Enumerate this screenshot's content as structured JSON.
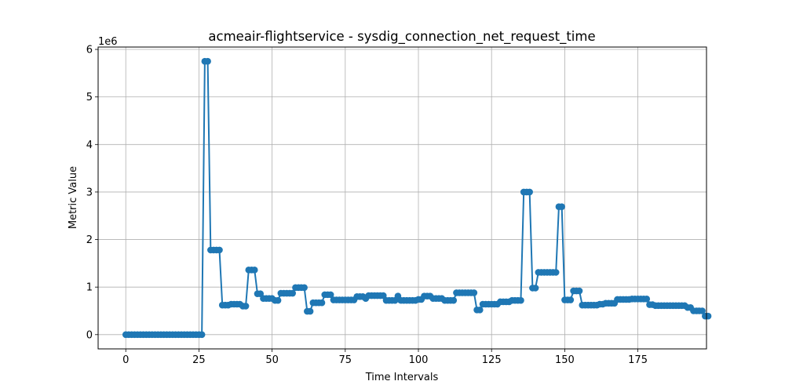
{
  "chart_data": {
    "type": "line",
    "title": "acmeair-flightservice - sysdig_connection_net_request_time",
    "xlabel": "Time Intervals",
    "ylabel": "Metric Value",
    "y_offset_label": "1e6",
    "xlim": [
      -9.45,
      198.45
    ],
    "ylim": [
      -300000,
      6050000
    ],
    "grid": true,
    "marker": "circle",
    "color": "#1f77b4",
    "x_ticks": [
      {
        "value": 0,
        "label": "0"
      },
      {
        "value": 25,
        "label": "25"
      },
      {
        "value": 50,
        "label": "50"
      },
      {
        "value": 75,
        "label": "75"
      },
      {
        "value": 100,
        "label": "100"
      },
      {
        "value": 125,
        "label": "125"
      },
      {
        "value": 150,
        "label": "150"
      },
      {
        "value": 175,
        "label": "175"
      }
    ],
    "y_ticks": [
      {
        "value": 0,
        "label": "0"
      },
      {
        "value": 1000000,
        "label": "1"
      },
      {
        "value": 2000000,
        "label": "2"
      },
      {
        "value": 3000000,
        "label": "3"
      },
      {
        "value": 4000000,
        "label": "4"
      },
      {
        "value": 5000000,
        "label": "5"
      },
      {
        "value": 6000000,
        "label": "6"
      }
    ],
    "series": [
      {
        "values": [
          0,
          0,
          0,
          0,
          0,
          0,
          0,
          0,
          0,
          0,
          0,
          0,
          0,
          0,
          0,
          0,
          0,
          0,
          0,
          0,
          0,
          0,
          0,
          0,
          0,
          0,
          0,
          5750000,
          5750000,
          1780000,
          1780000,
          1780000,
          1780000,
          620000,
          620000,
          620000,
          640000,
          640000,
          640000,
          640000,
          600000,
          600000,
          1360000,
          1360000,
          1360000,
          860000,
          860000,
          760000,
          760000,
          760000,
          760000,
          720000,
          720000,
          870000,
          870000,
          870000,
          870000,
          870000,
          990000,
          990000,
          990000,
          990000,
          490000,
          490000,
          670000,
          670000,
          670000,
          670000,
          840000,
          840000,
          840000,
          730000,
          730000,
          730000,
          730000,
          730000,
          730000,
          730000,
          730000,
          800000,
          800000,
          800000,
          760000,
          820000,
          820000,
          820000,
          820000,
          820000,
          820000,
          720000,
          720000,
          720000,
          720000,
          810000,
          720000,
          720000,
          720000,
          720000,
          720000,
          720000,
          740000,
          740000,
          810000,
          810000,
          810000,
          760000,
          760000,
          760000,
          760000,
          720000,
          720000,
          720000,
          720000,
          880000,
          880000,
          880000,
          880000,
          880000,
          880000,
          880000,
          520000,
          520000,
          640000,
          640000,
          640000,
          640000,
          640000,
          640000,
          690000,
          690000,
          690000,
          690000,
          720000,
          720000,
          720000,
          720000,
          3000000,
          3000000,
          3000000,
          980000,
          980000,
          1310000,
          1310000,
          1310000,
          1310000,
          1310000,
          1310000,
          1310000,
          2690000,
          2690000,
          730000,
          730000,
          730000,
          920000,
          920000,
          920000,
          620000,
          620000,
          620000,
          620000,
          620000,
          620000,
          640000,
          640000,
          660000,
          660000,
          660000,
          660000,
          740000,
          740000,
          740000,
          740000,
          740000,
          750000,
          750000,
          750000,
          750000,
          750000,
          750000,
          630000,
          630000,
          610000,
          610000,
          610000,
          610000,
          610000,
          610000,
          610000,
          610000,
          610000,
          610000,
          610000,
          570000,
          570000,
          500000,
          500000,
          500000,
          500000,
          390000,
          390000
        ]
      }
    ]
  }
}
